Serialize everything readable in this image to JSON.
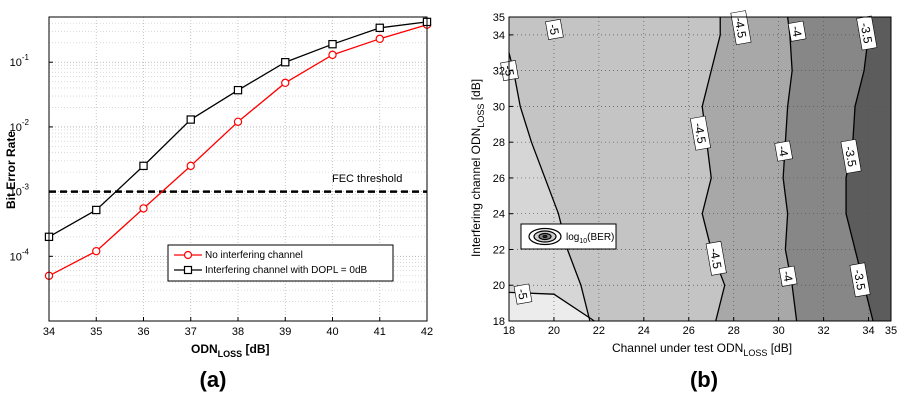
{
  "chart_data": [
    {
      "type": "line",
      "panel_label": "(a)",
      "xlabel": {
        "main": "ODN",
        "sub": "LOSS",
        "unit": " [dB]"
      },
      "ylabel": "Bit Error Rate",
      "xlim": [
        34,
        42
      ],
      "ylim": [
        1e-05,
        0.5
      ],
      "yscale": "log",
      "grid": true,
      "x_ticks": [
        34,
        35,
        36,
        37,
        38,
        39,
        40,
        41,
        42
      ],
      "y_ticks": [
        {
          "exp": "-4",
          "value": 0.0001
        },
        {
          "exp": "-3",
          "value": 0.001
        },
        {
          "exp": "-2",
          "value": 0.01
        },
        {
          "exp": "-1",
          "value": 0.1
        }
      ],
      "tick_base": "10",
      "legend_position": "lower-right",
      "series": [
        {
          "name": "No interfering channel",
          "color": "#ff0000",
          "marker": "circle",
          "x": [
            34,
            35,
            36,
            37,
            38,
            39,
            40,
            41,
            42
          ],
          "y": [
            5e-05,
            0.00012,
            0.00055,
            0.0025,
            0.012,
            0.048,
            0.13,
            0.23,
            0.38
          ]
        },
        {
          "name": "Interfering channel with DOPL = 0dB",
          "color": "#000000",
          "marker": "square",
          "x": [
            34,
            35,
            36,
            37,
            38,
            39,
            40,
            41,
            42
          ],
          "y": [
            0.0002,
            0.00052,
            0.0025,
            0.013,
            0.037,
            0.1,
            0.19,
            0.34,
            0.42
          ]
        }
      ],
      "annotations": [
        {
          "text": "FEC threshold",
          "y": 0.001,
          "style": "dashed",
          "color": "#000000"
        }
      ]
    },
    {
      "type": "contour",
      "panel_label": "(b)",
      "xlabel": {
        "main": "Channel under test ODN",
        "sub": "LOSS",
        "unit": " [dB]"
      },
      "ylabel": {
        "main": "Interfering channel ODN",
        "sub": "LOSS",
        "unit": " [dB]"
      },
      "xlim": [
        18,
        35
      ],
      "ylim": [
        18,
        35
      ],
      "grid": true,
      "x_ticks": [
        18,
        20,
        22,
        24,
        26,
        28,
        30,
        32,
        34,
        35
      ],
      "y_ticks": [
        18,
        20,
        22,
        24,
        26,
        28,
        30,
        32,
        34,
        35
      ],
      "legend": {
        "main": "log",
        "sub": "10",
        "tail": "(BER)"
      },
      "legend_position": "lower-left",
      "levels": [
        {
          "value": -5,
          "color": "#ececec"
        },
        {
          "value": -4.5,
          "color": "#c4c4c4"
        },
        {
          "value": -4,
          "color": "#a8a8a8"
        },
        {
          "value": -3.5,
          "color": "#878787"
        },
        {
          "value": -3,
          "color": "#5c5c5c"
        }
      ],
      "contours": [
        {
          "level": "-5",
          "x": [
            21.6,
            21.2,
            20.6,
            20.2,
            19.6,
            19.0,
            18.5,
            18.2,
            18.0
          ],
          "y": [
            18.0,
            20.0,
            22.0,
            24.0,
            26.0,
            28.0,
            30.0,
            32.0,
            33.0
          ]
        },
        {
          "level": "-4.5",
          "x": [
            27.2,
            27.6,
            27.0,
            26.6,
            27.0,
            26.8,
            26.6,
            27.0,
            27.4,
            27.4
          ],
          "y": [
            18.0,
            20.0,
            22.0,
            24.0,
            26.0,
            28.0,
            30.0,
            32.0,
            34.0,
            35.0
          ]
        },
        {
          "level": "-4",
          "x": [
            30.8,
            30.6,
            30.3,
            30.4,
            30.2,
            30.3,
            30.4,
            30.6,
            30.5,
            30.4
          ],
          "y": [
            18.0,
            20.0,
            22.0,
            24.0,
            26.0,
            28.0,
            30.0,
            32.0,
            34.0,
            35.0
          ]
        },
        {
          "level": "-3.5",
          "x": [
            34.2,
            33.8,
            33.4,
            33.0,
            33.0,
            33.3,
            33.4,
            33.8,
            34.0,
            34.1
          ],
          "y": [
            18.0,
            20.0,
            22.0,
            24.0,
            26.0,
            28.0,
            30.0,
            32.0,
            34.0,
            35.0
          ]
        }
      ],
      "lower_left_patch": {
        "x": [
          18.0,
          20.0,
          21.8
        ],
        "y": [
          19.6,
          19.5,
          18.0
        ]
      },
      "left_patch": {
        "x": [
          18.0,
          18.3,
          18.0
        ],
        "y": [
          31.7,
          32.0,
          32.3
        ]
      },
      "contour_labels": [
        {
          "text": "-5",
          "x": 20.0,
          "y": 34.3
        },
        {
          "text": "-4.5",
          "x": 28.3,
          "y": 34.4
        },
        {
          "text": "-4",
          "x": 30.8,
          "y": 34.2
        },
        {
          "text": "-3.5",
          "x": 33.9,
          "y": 34.1
        },
        {
          "text": "-4.5",
          "x": 26.5,
          "y": 28.5
        },
        {
          "text": "-4",
          "x": 30.2,
          "y": 27.5
        },
        {
          "text": "-3.5",
          "x": 33.2,
          "y": 27.2
        },
        {
          "text": "-4.5",
          "x": 27.2,
          "y": 21.5
        },
        {
          "text": "-4",
          "x": 30.4,
          "y": 20.5
        },
        {
          "text": "-3.5",
          "x": 33.6,
          "y": 20.3
        },
        {
          "text": "-5",
          "x": 18.6,
          "y": 19.5
        },
        {
          "text": "-5",
          "x": 18.0,
          "y": 32.0
        }
      ]
    }
  ]
}
